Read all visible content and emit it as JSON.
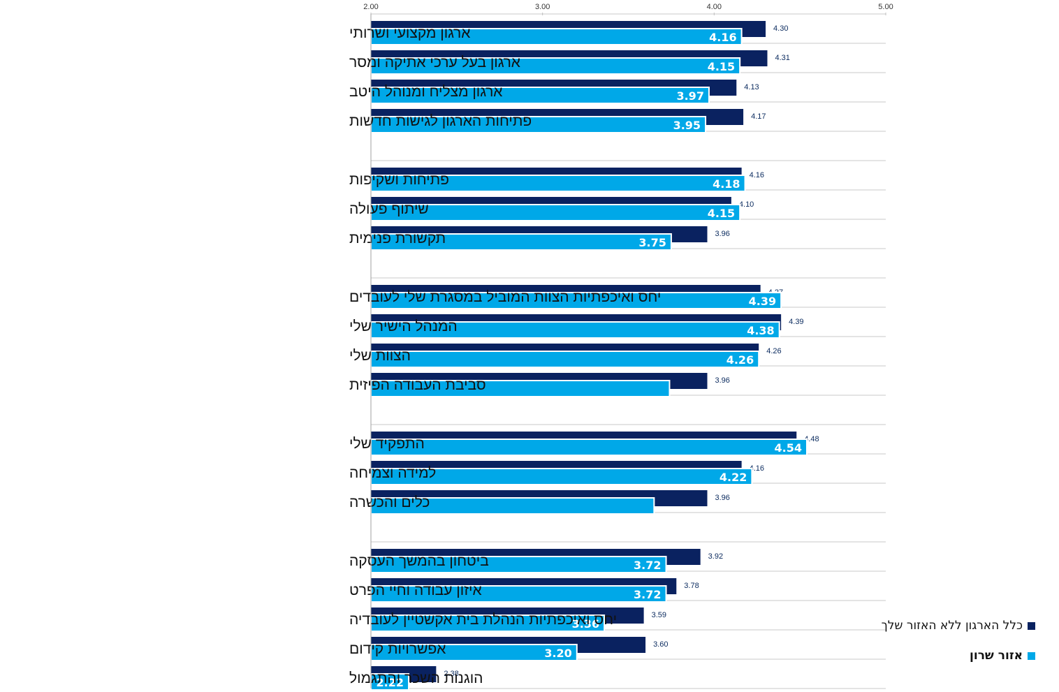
{
  "chart_data": {
    "type": "bar",
    "orientation": "horizontal",
    "xlim": [
      2.0,
      5.0
    ],
    "x_ticks": [
      "2.00",
      "3.00",
      "4.00",
      "5.00"
    ],
    "legend_position": "bottom-right",
    "series": [
      {
        "name": "כלל הארגון ללא האזור שלך",
        "color": "#0a2260"
      },
      {
        "name": "אזור שרון",
        "color": "#00a8e8"
      }
    ],
    "groups": [
      [
        {
          "label": "ארגון מקצועי ושרותי",
          "dark": 4.3,
          "dark_label": "4.30",
          "light": 4.16,
          "light_label": "4.16"
        },
        {
          "label": "ארגון בעל ערכי אתיקה ומסר",
          "dark": 4.31,
          "dark_label": "4.31",
          "light": 4.15,
          "light_label": "4.15"
        },
        {
          "label": "ארגון מצליח ומנוהל היטב",
          "dark": 4.13,
          "dark_label": "4.13",
          "light": 3.97,
          "light_label": "3.97"
        },
        {
          "label": "פתיחות הארגון לגישות חדשות",
          "dark": 4.17,
          "dark_label": "4.17",
          "light": 3.95,
          "light_label": "3.95"
        }
      ],
      [
        {
          "label": "פתיחות ושקיפות",
          "dark": 4.16,
          "dark_label": "4.16",
          "light": 4.18,
          "light_label": "4.18"
        },
        {
          "label": "שיתוף פעולה",
          "dark": 4.1,
          "dark_label": "4.10",
          "light": 4.15,
          "light_label": "4.15"
        },
        {
          "label": "תקשורת פנימית",
          "dark": 3.96,
          "dark_label": "3.96",
          "light": 3.75,
          "light_label": "3.75"
        }
      ],
      [
        {
          "label": "יחס ואיכפתיות הצוות המוביל במסגרת שלי לעובדים",
          "dark": 4.27,
          "dark_label": "4.27",
          "light": 4.39,
          "light_label": "4.39"
        },
        {
          "label": "המנהל הישיר שלי",
          "dark": 4.39,
          "dark_label": "4.39",
          "light": 4.38,
          "light_label": "4.38"
        },
        {
          "label": "הצוות שלי",
          "dark": 4.26,
          "dark_label": "4.26",
          "light": 4.26,
          "light_label": "4.26"
        },
        {
          "label": "סביבת העבודה הפיזית",
          "dark": 3.96,
          "dark_label": "3.96",
          "light": 3.74,
          "light_label": ""
        }
      ],
      [
        {
          "label": "התפקיד שלי",
          "dark": 4.48,
          "dark_label": "4.48",
          "light": 4.54,
          "light_label": "4.54"
        },
        {
          "label": "למידה וצמיחה",
          "dark": 4.16,
          "dark_label": "4.16",
          "light": 4.22,
          "light_label": "4.22"
        },
        {
          "label": "כלים והכשרה",
          "dark": 3.96,
          "dark_label": "3.96",
          "light": 3.65,
          "light_label": ""
        }
      ],
      [
        {
          "label": "ביטחון בהמשך העסקה",
          "dark": 3.92,
          "dark_label": "3.92",
          "light": 3.72,
          "light_label": "3.72"
        },
        {
          "label": "איזון עבודה וחיי הפרט",
          "dark": 3.78,
          "dark_label": "3.78",
          "light": 3.72,
          "light_label": "3.72"
        },
        {
          "label": "יחס ואיכפתיות הנהלת בית אקשטיין לעובדיה",
          "dark": 3.59,
          "dark_label": "3.59",
          "light": 3.36,
          "light_label": "3.36"
        },
        {
          "label": "אפשרויות קידום",
          "dark": 3.6,
          "dark_label": "3.60",
          "light": 3.2,
          "light_label": "3.20"
        },
        {
          "label": "הוגנות השכר והתגמול",
          "dark": 2.38,
          "dark_label": "2.38",
          "light": 2.22,
          "light_label": "2.22"
        }
      ]
    ]
  }
}
